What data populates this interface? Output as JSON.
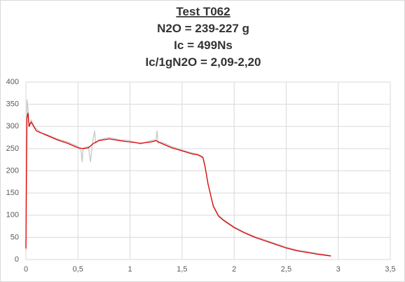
{
  "chart_data": {
    "type": "line",
    "title_lines": [
      "Test T062",
      "N2O = 239-227 g",
      "Ic = 499Ns",
      "Ic/1gN2O = 2,09-2,20"
    ],
    "xlim": [
      0,
      3.5
    ],
    "xticks": [
      0,
      {
        "value": 0.5,
        "label": "0,5"
      },
      1,
      {
        "value": 1.5,
        "label": "1,5"
      },
      2,
      {
        "value": 2.5,
        "label": "2,5"
      },
      3,
      {
        "value": 3.5,
        "label": "3,5"
      }
    ],
    "ylim": [
      0,
      400
    ],
    "yticks": [
      0,
      50,
      100,
      150,
      200,
      250,
      300,
      350,
      400
    ],
    "grid": true,
    "series": [
      {
        "color": "#c8c8c8",
        "x": [
          0,
          0.005,
          0.01,
          0.02,
          0.03,
          0.05,
          0.08,
          0.1,
          0.15,
          0.2,
          0.3,
          0.4,
          0.5,
          0.53,
          0.54,
          0.55,
          0.6,
          0.62,
          0.64,
          0.66,
          0.67,
          0.7,
          0.8,
          0.9,
          1.0,
          1.1,
          1.2,
          1.25,
          1.26,
          1.27,
          1.3,
          1.4,
          1.5,
          1.6,
          1.65,
          1.7,
          1.72,
          1.75,
          1.8,
          1.85,
          1.9,
          2.0,
          2.1,
          2.2,
          2.3,
          2.4,
          2.5,
          2.6,
          2.7,
          2.8,
          2.9,
          2.93
        ],
        "values": [
          20,
          210,
          360,
          340,
          300,
          315,
          300,
          295,
          285,
          282,
          272,
          265,
          255,
          245,
          220,
          252,
          255,
          220,
          265,
          290,
          262,
          270,
          275,
          270,
          268,
          260,
          268,
          270,
          290,
          262,
          265,
          255,
          247,
          240,
          238,
          232,
          212,
          168,
          122,
          100,
          90,
          74,
          62,
          52,
          44,
          36,
          28,
          22,
          18,
          14,
          10,
          8
        ]
      },
      {
        "color": "#e00000",
        "x": [
          0,
          0.005,
          0.01,
          0.02,
          0.03,
          0.05,
          0.1,
          0.2,
          0.3,
          0.4,
          0.5,
          0.55,
          0.6,
          0.65,
          0.7,
          0.8,
          0.9,
          1.0,
          1.1,
          1.2,
          1.25,
          1.3,
          1.4,
          1.5,
          1.6,
          1.65,
          1.7,
          1.72,
          1.75,
          1.8,
          1.85,
          1.9,
          2.0,
          2.1,
          2.2,
          2.3,
          2.4,
          2.5,
          2.6,
          2.7,
          2.8,
          2.9,
          2.93
        ],
        "values": [
          25,
          200,
          320,
          330,
          300,
          310,
          290,
          280,
          270,
          262,
          252,
          250,
          252,
          262,
          268,
          272,
          268,
          265,
          262,
          265,
          268,
          262,
          252,
          245,
          238,
          236,
          230,
          210,
          170,
          120,
          98,
          88,
          72,
          60,
          50,
          42,
          34,
          26,
          20,
          16,
          12,
          9,
          8
        ]
      }
    ]
  }
}
